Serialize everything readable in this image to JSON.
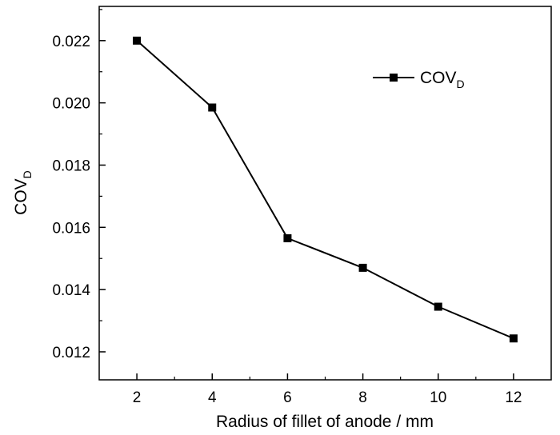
{
  "chart_data": {
    "type": "line",
    "x": [
      2,
      4,
      6,
      8,
      10,
      12
    ],
    "series": [
      {
        "name": "COV",
        "name_subscript": "D",
        "values": [
          0.022,
          0.01985,
          0.01565,
          0.0147,
          0.01345,
          0.01243
        ]
      }
    ],
    "xlabel": "Radius of fillet of anode / mm",
    "ylabel": "COV",
    "ylabel_subscript": "D",
    "xlim": [
      1,
      13
    ],
    "ylim": [
      0.0111,
      0.0231
    ],
    "xticks": [
      "2",
      "4",
      "6",
      "8",
      "10",
      "12"
    ],
    "yticks": [
      "0.012",
      "0.014",
      "0.016",
      "0.018",
      "0.020",
      "0.022"
    ],
    "grid": false,
    "legend_position": "top-right",
    "marker": "square",
    "line_color": "#000000"
  }
}
